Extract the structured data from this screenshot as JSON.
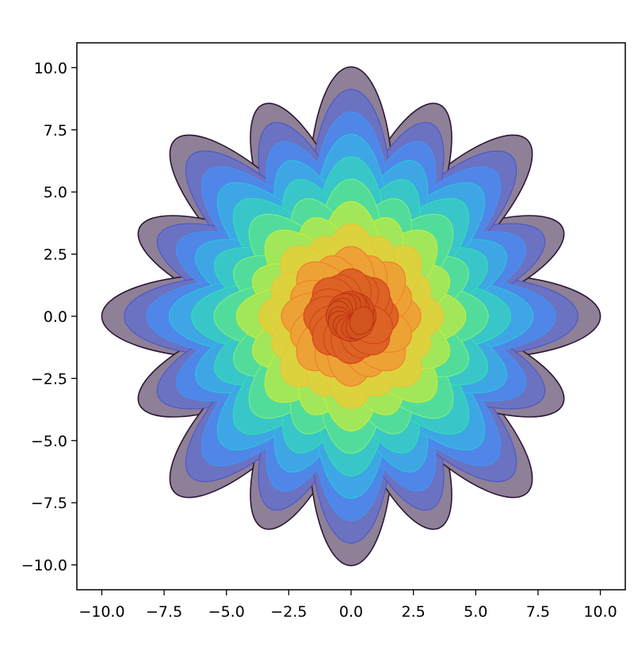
{
  "chart_data": {
    "type": "contour",
    "title": "",
    "xlabel": "",
    "ylabel": "",
    "xlim": [
      -11,
      11
    ],
    "ylim": [
      -11,
      11
    ],
    "x_ticks": [
      -10.0,
      -7.5,
      -5.0,
      -2.5,
      0.0,
      2.5,
      5.0,
      7.5,
      10.0
    ],
    "x_tick_labels": [
      "−10.0",
      "−7.5",
      "−5.0",
      "−2.5",
      "0.0",
      "2.5",
      "5.0",
      "7.5",
      "10.0"
    ],
    "y_ticks": [
      10.0,
      7.5,
      5.0,
      2.5,
      0.0,
      -2.5,
      -5.0,
      -7.5,
      -10.0
    ],
    "y_tick_labels": [
      "10.0",
      "7.5",
      "5.0",
      "2.5",
      "0.0",
      "−2.5",
      "−5.0",
      "−7.5",
      "−10.0"
    ],
    "grid": false,
    "legend": "none",
    "petals": 16,
    "petal_length": 10,
    "petal_angles_deg": [
      0,
      22.5,
      45,
      67.5,
      90,
      112.5,
      135,
      157.5,
      180,
      202.5,
      225,
      247.5,
      270,
      292.5,
      315,
      337.5
    ],
    "outer_petal_radii": [
      10,
      9.2,
      10,
      9.2,
      10,
      9.2,
      10,
      9.2,
      10,
      9.2,
      10,
      9.2,
      10,
      9.2,
      10,
      9.2
    ],
    "levels": [
      {
        "fraction": 1.0,
        "fill": "#8e8096",
        "edge": "#2d1738"
      },
      {
        "fraction": 0.91,
        "fill": "#6b72c2",
        "edge": "#4a55c8"
      },
      {
        "fraction": 0.82,
        "fill": "#4f86e8",
        "edge": "#4196f0"
      },
      {
        "fraction": 0.73,
        "fill": "#3fa6e6",
        "edge": "#2bc4dc"
      },
      {
        "fraction": 0.64,
        "fill": "#39c6c8",
        "edge": "#2ee3b0"
      },
      {
        "fraction": 0.55,
        "fill": "#52dc9c",
        "edge": "#7ef07a"
      },
      {
        "fraction": 0.46,
        "fill": "#a2e65a",
        "edge": "#c8ef3c"
      },
      {
        "fraction": 0.37,
        "fill": "#dcd23e",
        "edge": "#f0c038"
      },
      {
        "fraction": 0.28,
        "fill": "#eda236",
        "edge": "#f07f25"
      },
      {
        "fraction": 0.19,
        "fill": "#dc6226",
        "edge": "#d24513"
      },
      {
        "fraction": 0.1,
        "fill": "#d1541f",
        "edge": "#c0320c"
      }
    ],
    "colormap": "turbo"
  }
}
